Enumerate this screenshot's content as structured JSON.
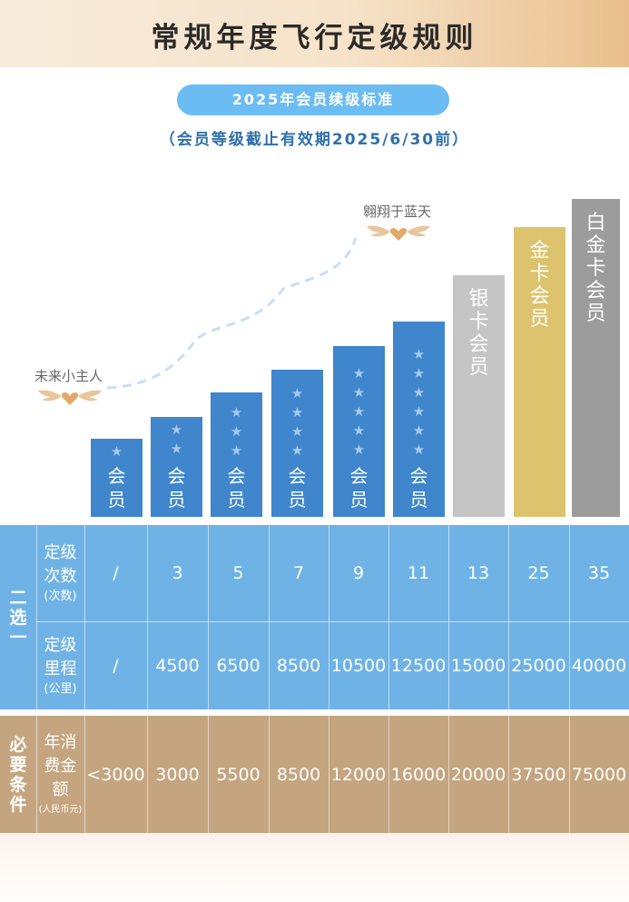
{
  "header": {
    "title": "常规年度飞行定级规则"
  },
  "standard": {
    "pill": "2025年会员续级标准",
    "note": "（会员等级截止有效期2025/6/30前）"
  },
  "labels": {
    "start": "未来小主人",
    "sky": "翱翔于蓝天"
  },
  "tiers": [
    {
      "stars": "★",
      "name": "会员"
    },
    {
      "stars": "★★",
      "name": "会员"
    },
    {
      "stars": "★★★",
      "name": "会员"
    },
    {
      "stars": "★★★★",
      "name": "会员"
    },
    {
      "stars": "★★★★★",
      "name": "会员"
    },
    {
      "stars": "★★★★★★",
      "name": "会员"
    },
    {
      "stars": "",
      "name": "银卡会员"
    },
    {
      "stars": "",
      "name": "金卡会员"
    },
    {
      "stars": "",
      "name": "白金卡会员"
    }
  ],
  "table": {
    "group_either": "二选一",
    "group_required": "必要条件",
    "rows": [
      {
        "label": "定级次数",
        "unit": "(次数)",
        "values": [
          "/",
          "3",
          "5",
          "7",
          "9",
          "11",
          "13",
          "25",
          "35"
        ]
      },
      {
        "label": "定级里程",
        "unit": "(公里)",
        "values": [
          "/",
          "4500",
          "6500",
          "8500",
          "10500",
          "12500",
          "15000",
          "25000",
          "40000"
        ]
      },
      {
        "label": "年消费金额",
        "unit": "(人民币元)",
        "values": [
          "<3000",
          "3000",
          "5500",
          "8500",
          "12000",
          "16000",
          "20000",
          "37500",
          "75000"
        ]
      }
    ]
  },
  "colors": {
    "blue_bar": "#3f86cc",
    "silver_bar": "#c5c5c5",
    "gold_bar": "#ddc36d",
    "platinum_bar": "#9c9c9c",
    "table_blue": "#6fb3e6",
    "table_brown": "#c4a57f"
  }
}
